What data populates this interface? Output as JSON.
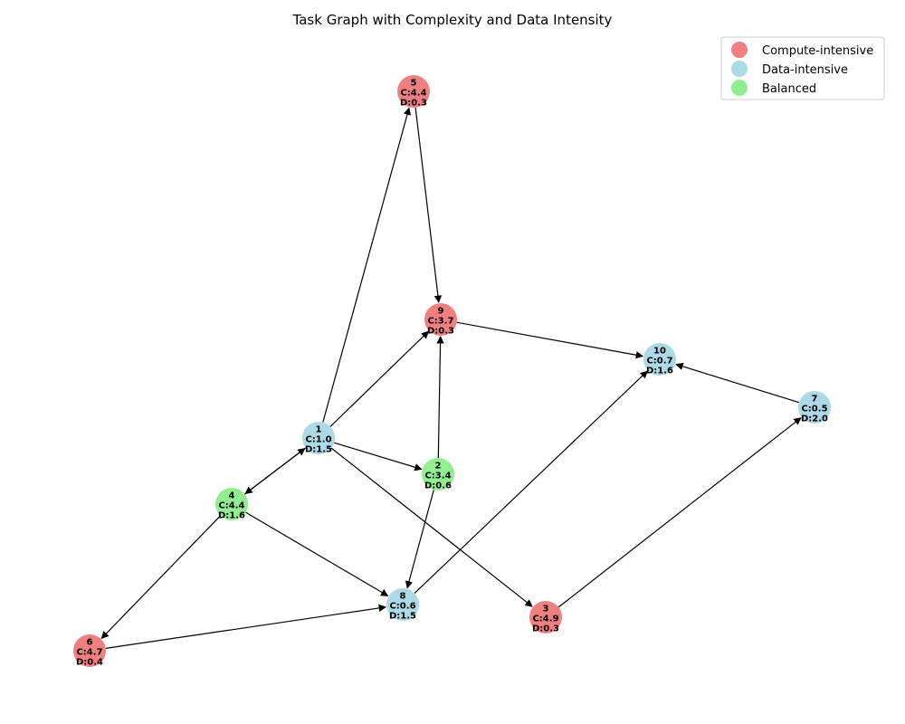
{
  "title": "Task Graph with Complexity and Data Intensity",
  "categories": {
    "compute": {
      "label": "Compute-intensive",
      "color": "#f08080"
    },
    "data": {
      "label": "Data-intensive",
      "color": "#add8e6"
    },
    "balanced": {
      "label": "Balanced",
      "color": "#90ee90"
    }
  },
  "legend": [
    "compute",
    "data",
    "balanced"
  ],
  "nodes": [
    {
      "id": "1",
      "c": "1.0",
      "d": "1.5",
      "category": "data"
    },
    {
      "id": "2",
      "c": "3.4",
      "d": "0.6",
      "category": "balanced"
    },
    {
      "id": "3",
      "c": "4.9",
      "d": "0.3",
      "category": "compute"
    },
    {
      "id": "4",
      "c": "4.4",
      "d": "1.6",
      "category": "balanced"
    },
    {
      "id": "5",
      "c": "4.4",
      "d": "0.3",
      "category": "compute"
    },
    {
      "id": "6",
      "c": "4.7",
      "d": "0.4",
      "category": "compute"
    },
    {
      "id": "7",
      "c": "0.5",
      "d": "2.0",
      "category": "data"
    },
    {
      "id": "8",
      "c": "0.6",
      "d": "1.5",
      "category": "data"
    },
    {
      "id": "9",
      "c": "3.7",
      "d": "0.3",
      "category": "compute"
    },
    {
      "id": "10",
      "c": "0.7",
      "d": "1.6",
      "category": "data"
    }
  ],
  "edges": [
    [
      "1",
      "5"
    ],
    [
      "1",
      "9"
    ],
    [
      "1",
      "2"
    ],
    [
      "1",
      "3"
    ],
    [
      "1",
      "4"
    ],
    [
      "4",
      "1"
    ],
    [
      "4",
      "6"
    ],
    [
      "4",
      "8"
    ],
    [
      "5",
      "9"
    ],
    [
      "2",
      "9"
    ],
    [
      "2",
      "8"
    ],
    [
      "9",
      "10"
    ],
    [
      "7",
      "10"
    ],
    [
      "8",
      "10"
    ],
    [
      "6",
      "8"
    ],
    [
      "3",
      "7"
    ]
  ]
}
